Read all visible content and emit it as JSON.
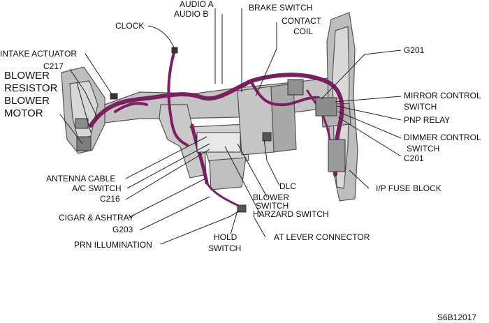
{
  "colors": {
    "harness": "#7b1f5f",
    "frame": "#b9b9b9",
    "frame_dark": "#6e6e6e",
    "line": "#222222",
    "text": "#111111"
  },
  "labels": {
    "audio_a": "AUDIO A",
    "audio_b": "AUDIO B",
    "brake_switch": "BRAKE SWITCH",
    "clock": "CLOCK",
    "contact_coil_1": "CONTACT",
    "contact_coil_2": "COIL",
    "g201": "G201",
    "intake_actuator": "INTAKE ACTUATOR",
    "c217": "C217",
    "blower_resistor_1": "BLOWER",
    "blower_resistor_2": "RESISTOR",
    "blower_motor_1": "BLOWER",
    "blower_motor_2": "MOTOR",
    "mirror_control_1": "MIRROR CONTROL",
    "mirror_control_2": "SWITCH",
    "pnp_relay": "PNP RELAY",
    "dimmer_control_1": "DIMMER CONTROL",
    "dimmer_control_2": "SWITCH",
    "c201": "C201",
    "antenna_cable": "ANTENNA CABLE",
    "ac_switch": "A/C SWITCH",
    "c216": "C216",
    "dlc": "DLC",
    "ip_fuse_block": "I/P FUSE BLOCK",
    "blower_switch_1": "BLOWER",
    "blower_switch_2": "SWITCH",
    "harzard_switch": "HARZARD SWITCH",
    "cigar_ashtray": "CIGAR & ASHTRAY",
    "g203": "G203",
    "hold_switch_1": "HOLD",
    "hold_switch_2": "SWITCH",
    "at_lever_connector": "AT LEVER CONNECTOR",
    "prn_illumination": "PRN ILLUMINATION",
    "figure_id": "S6B12017"
  }
}
